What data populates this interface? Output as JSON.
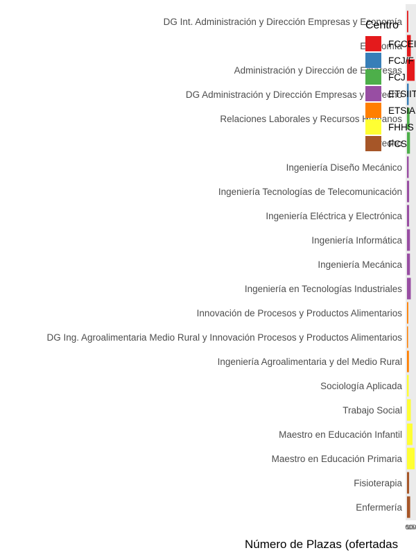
{
  "chart_data": {
    "type": "bar",
    "orientation": "horizontal",
    "xlabel": "Número de Plazas (ofertadas",
    "ylabel": "",
    "xlim": [
      0,
      180
    ],
    "x_ticks": [
      "0",
      "50",
      "100",
      "150"
    ],
    "legend": {
      "title": "Centro",
      "placement": "top-right",
      "entries": [
        {
          "name": "FCCEE",
          "display": "FCCEI",
          "color": "#E41A1C"
        },
        {
          "name": "FCJ/FCCEE",
          "display": "FCJ/F",
          "color": "#377EB8"
        },
        {
          "name": "FCJ",
          "display": "FCJ",
          "color": "#4DAF4A"
        },
        {
          "name": "ETSIIT",
          "display": "ETSIIT",
          "color": "#984EA3"
        },
        {
          "name": "ETSIA",
          "display": "ETSIA",
          "color": "#FF7F00"
        },
        {
          "name": "FHHS",
          "display": "FHHS",
          "color": "#FFFF33"
        },
        {
          "name": "FCS",
          "display": "FCS",
          "color": "#A65628"
        }
      ]
    },
    "categories": [
      "DG Int.  Administración y Dirección Empresas y Economía",
      "Economía",
      "Administración y Dirección de Empresas",
      "DG Administración y Dirección Empresas y  Derecho",
      "Relaciones Laborales y Recursos Humanos",
      "Derecho",
      "Ingeniería Diseño Mecánico",
      "Ingeniería Tecnologías de Telecomunicación",
      "Ingeniería Eléctrica y Electrónica",
      "Ingeniería Informática",
      "Ingeniería Mecánica",
      "Ingeniería en Tecnologías Industriales",
      "Innovación de Procesos y Productos Alimentarios",
      "DG Ing. Agroalimentaria Medio Rural y Innovación Procesos y Productos Alimentarios",
      "Ingeniería Agroalimentaria y del Medio Rural",
      "Sociología Aplicada",
      "Trabajo Social",
      "Maestro en Educación Infantil",
      "Maestro en Educación Primaria",
      "Fisioterapia",
      "Enfermería"
    ],
    "centro": [
      "FCCEE",
      "FCCEE",
      "FCCEE",
      "FCJ/FCCEE",
      "FCJ",
      "FCJ",
      "ETSIIT",
      "ETSIIT",
      "ETSIIT",
      "ETSIIT",
      "ETSIIT",
      "ETSIIT",
      "ETSIA",
      "ETSIA",
      "ETSIA",
      "FHHS",
      "FHHS",
      "FHHS",
      "FHHS",
      "FCS",
      "FCS"
    ],
    "values": [
      30,
      90,
      180,
      40,
      60,
      70,
      40,
      50,
      50,
      70,
      70,
      90,
      30,
      25,
      45,
      40,
      90,
      130,
      180,
      50,
      75
    ]
  }
}
